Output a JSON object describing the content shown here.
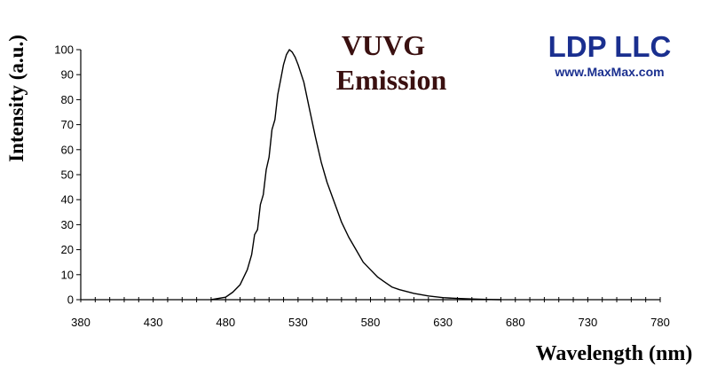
{
  "chart_data": {
    "type": "line",
    "title_lines": [
      "VUVG",
      "Emission"
    ],
    "xlabel": "Wavelength (nm)",
    "ylabel": "Intensity (a.u.)",
    "xlim": [
      380,
      780
    ],
    "ylim": [
      0,
      100
    ],
    "xticks": [
      380,
      430,
      480,
      530,
      580,
      630,
      680,
      730,
      780
    ],
    "yticks": [
      0,
      10,
      20,
      30,
      40,
      50,
      60,
      70,
      80,
      90,
      100
    ],
    "grid": false,
    "series": [
      {
        "color": "#000000",
        "x": [
          470,
          480,
          485,
          490,
          495,
          498,
          500,
          502,
          504,
          506,
          508,
          510,
          512,
          514,
          516,
          518,
          520,
          522,
          524,
          526,
          528,
          530,
          534,
          538,
          542,
          546,
          550,
          555,
          560,
          565,
          570,
          575,
          580,
          585,
          590,
          595,
          600,
          610,
          620,
          630,
          640,
          650,
          660,
          670
        ],
        "y": [
          0,
          1,
          3,
          6,
          12,
          18,
          26,
          28,
          38,
          42,
          52,
          57,
          68,
          72,
          82,
          88,
          94,
          98,
          100,
          99,
          97,
          94,
          87,
          76,
          65,
          55,
          47,
          39,
          31,
          25,
          20,
          15,
          12,
          9,
          7,
          5,
          4,
          2.5,
          1.5,
          0.8,
          0.5,
          0.3,
          0.1,
          0
        ]
      }
    ]
  },
  "branding": {
    "company": "LDP LLC",
    "website": "www.MaxMax.com",
    "company_color": "#1a2f8f",
    "title_color": "#3a1010"
  }
}
